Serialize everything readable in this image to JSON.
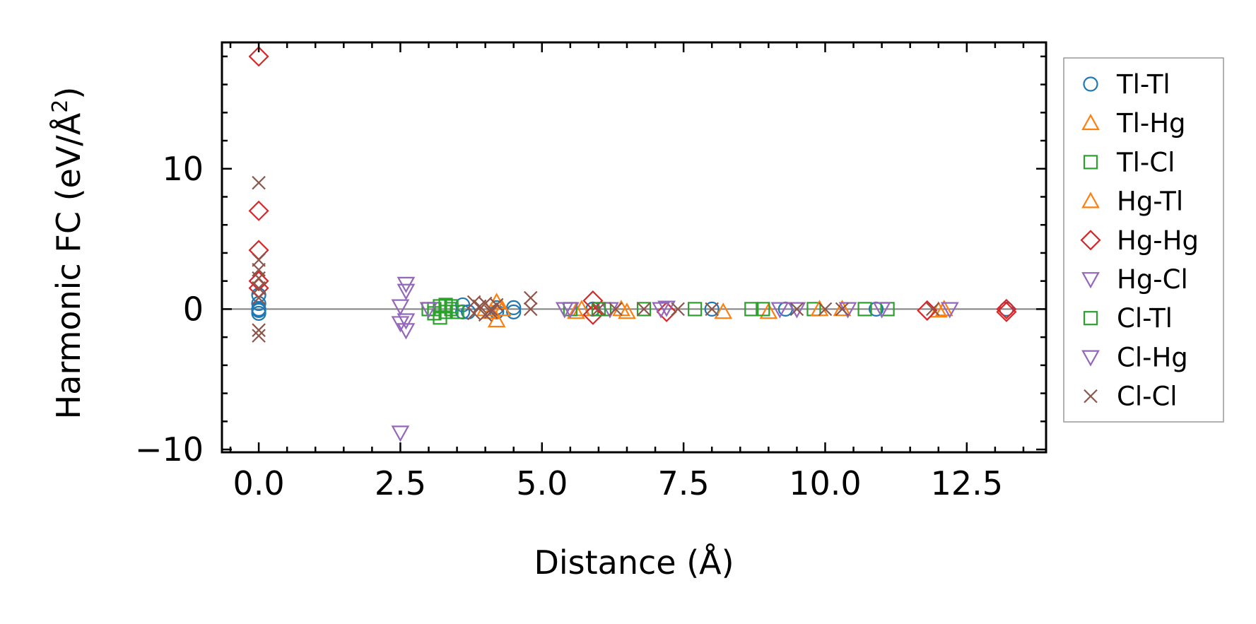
{
  "chart_data": {
    "type": "scatter",
    "title": "",
    "xlabel": "Distance (Å)",
    "ylabel_main": "Harmonic FC (eV/Å",
    "ylabel_sup": "2",
    "ylabel_end": ")",
    "xlim": [
      -0.65,
      13.9
    ],
    "ylim": [
      -10.2,
      19.0
    ],
    "xticks": [
      0.0,
      2.5,
      5.0,
      7.5,
      10.0,
      12.5
    ],
    "xtick_labels": [
      "0.0",
      "2.5",
      "5.0",
      "7.5",
      "10.0",
      "12.5"
    ],
    "yticks": [
      -10,
      0,
      10
    ],
    "ytick_labels": [
      "−10",
      "0",
      "10"
    ],
    "x_minor_step": 0.5,
    "y_minor_step": 2,
    "zero_line": 0,
    "legend_location": "outside-right",
    "series": [
      {
        "name": "Tl-Tl",
        "marker": "circle",
        "color": "#1f77b4",
        "points": [
          [
            0.0,
            0.0
          ],
          [
            0.0,
            -0.3
          ],
          [
            0.0,
            0.4
          ],
          [
            0.0,
            1.0
          ],
          [
            0.0,
            -0.1
          ],
          [
            3.6,
            -0.2
          ],
          [
            3.6,
            0.3
          ],
          [
            3.7,
            -0.2
          ],
          [
            4.2,
            0.1
          ],
          [
            4.2,
            -0.2
          ],
          [
            4.5,
            0.1
          ],
          [
            4.5,
            -0.2
          ],
          [
            5.9,
            0.0
          ],
          [
            8.0,
            0.0
          ],
          [
            9.3,
            0.0
          ],
          [
            10.9,
            0.0
          ],
          [
            13.2,
            0.0
          ]
        ]
      },
      {
        "name": "Tl-Hg",
        "marker": "triangle-up",
        "color": "#ff7f0e",
        "points": [
          [
            4.2,
            -0.8
          ],
          [
            4.2,
            0.5
          ],
          [
            4.1,
            -0.2
          ],
          [
            5.6,
            -0.2
          ],
          [
            5.7,
            0.0
          ],
          [
            6.5,
            -0.2
          ],
          [
            8.2,
            -0.2
          ],
          [
            9.0,
            -0.2
          ],
          [
            10.3,
            0.0
          ],
          [
            12.0,
            -0.1
          ]
        ]
      },
      {
        "name": "Tl-Cl",
        "marker": "square",
        "color": "#2ca02c",
        "points": [
          [
            3.1,
            0.0
          ],
          [
            3.1,
            -0.3
          ],
          [
            3.2,
            0.2
          ],
          [
            3.2,
            -0.6
          ],
          [
            3.3,
            0.3
          ],
          [
            3.3,
            -0.2
          ],
          [
            3.4,
            0.2
          ],
          [
            3.5,
            -0.2
          ],
          [
            5.5,
            0.0
          ],
          [
            6.1,
            0.0
          ],
          [
            6.8,
            0.0
          ],
          [
            7.7,
            0.0
          ],
          [
            8.7,
            0.0
          ],
          [
            9.8,
            0.0
          ],
          [
            10.7,
            0.0
          ],
          [
            11.1,
            0.0
          ]
        ]
      },
      {
        "name": "Hg-Tl",
        "marker": "triangle-up",
        "color": "#ff7f0e",
        "points": [
          [
            4.0,
            0.0
          ],
          [
            4.3,
            0.0
          ],
          [
            6.4,
            0.0
          ],
          [
            9.9,
            0.0
          ],
          [
            12.1,
            0.0
          ]
        ]
      },
      {
        "name": "Hg-Hg",
        "marker": "diamond",
        "color": "#d62728",
        "points": [
          [
            0.0,
            18.0
          ],
          [
            0.0,
            7.0
          ],
          [
            0.0,
            4.2
          ],
          [
            0.0,
            1.5
          ],
          [
            0.0,
            2.0
          ],
          [
            5.9,
            0.6
          ],
          [
            5.9,
            -0.4
          ],
          [
            7.2,
            -0.2
          ],
          [
            11.8,
            -0.1
          ],
          [
            13.2,
            -0.2
          ],
          [
            13.2,
            0.0
          ]
        ]
      },
      {
        "name": "Hg-Cl",
        "marker": "triangle-down",
        "color": "#9467bd",
        "points": [
          [
            2.5,
            -8.8
          ],
          [
            2.5,
            0.2
          ],
          [
            2.6,
            1.8
          ],
          [
            2.6,
            1.3
          ],
          [
            2.6,
            -0.8
          ],
          [
            2.6,
            -1.5
          ],
          [
            5.4,
            0.0
          ],
          [
            6.2,
            0.0
          ],
          [
            7.1,
            0.0
          ],
          [
            9.5,
            0.0
          ],
          [
            10.4,
            0.0
          ]
        ]
      },
      {
        "name": "Cl-Tl",
        "marker": "square",
        "color": "#2ca02c",
        "points": [
          [
            3.0,
            0.0
          ],
          [
            3.4,
            0.0
          ],
          [
            6.0,
            0.0
          ],
          [
            8.9,
            0.0
          ]
        ]
      },
      {
        "name": "Cl-Hg",
        "marker": "triangle-down",
        "color": "#9467bd",
        "points": [
          [
            2.5,
            -1.0
          ],
          [
            3.0,
            0.0
          ],
          [
            5.5,
            0.0
          ],
          [
            7.2,
            0.1
          ],
          [
            9.2,
            0.0
          ],
          [
            11.0,
            0.0
          ],
          [
            12.2,
            0.0
          ]
        ]
      },
      {
        "name": "Cl-Cl",
        "marker": "x",
        "color": "#8c564b",
        "points": [
          [
            0.0,
            9.0
          ],
          [
            0.0,
            3.5
          ],
          [
            0.0,
            2.8
          ],
          [
            0.0,
            2.2
          ],
          [
            0.0,
            1.5
          ],
          [
            0.0,
            0.8
          ],
          [
            0.0,
            -1.5
          ],
          [
            0.0,
            -1.9
          ],
          [
            3.8,
            0.5
          ],
          [
            3.8,
            -0.3
          ],
          [
            3.9,
            0.2
          ],
          [
            4.0,
            -0.4
          ],
          [
            4.0,
            0.4
          ],
          [
            4.1,
            0.0
          ],
          [
            4.1,
            -0.2
          ],
          [
            4.2,
            0.3
          ],
          [
            4.8,
            0.0
          ],
          [
            4.8,
            0.8
          ],
          [
            6.0,
            0.0
          ],
          [
            6.3,
            0.0
          ],
          [
            6.8,
            0.0
          ],
          [
            7.4,
            0.0
          ],
          [
            8.0,
            0.0
          ],
          [
            9.5,
            0.0
          ],
          [
            10.0,
            0.0
          ],
          [
            10.3,
            0.0
          ],
          [
            11.9,
            0.0
          ]
        ]
      }
    ]
  }
}
